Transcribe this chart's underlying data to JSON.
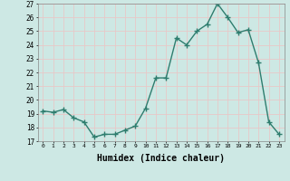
{
  "x": [
    0,
    1,
    2,
    3,
    4,
    5,
    6,
    7,
    8,
    9,
    10,
    11,
    12,
    13,
    14,
    15,
    16,
    17,
    18,
    19,
    20,
    21,
    22,
    23
  ],
  "y": [
    19.2,
    19.1,
    19.3,
    18.7,
    18.4,
    17.3,
    17.5,
    17.5,
    17.8,
    18.1,
    19.4,
    21.6,
    21.6,
    24.5,
    24.0,
    25.0,
    25.5,
    27.0,
    26.0,
    24.9,
    25.1,
    22.7,
    18.4,
    17.5
  ],
  "line_color": "#2e7d6e",
  "marker": "+",
  "marker_size": 4,
  "linewidth": 1.0,
  "xlabel": "Humidex (Indice chaleur)",
  "xlabel_fontsize": 7,
  "ylim": [
    17,
    27
  ],
  "xlim": [
    -0.5,
    23.5
  ],
  "yticks": [
    17,
    18,
    19,
    20,
    21,
    22,
    23,
    24,
    25,
    26,
    27
  ],
  "xticks": [
    0,
    1,
    2,
    3,
    4,
    5,
    6,
    7,
    8,
    9,
    10,
    11,
    12,
    13,
    14,
    15,
    16,
    17,
    18,
    19,
    20,
    21,
    22,
    23
  ],
  "bg_color": "#cde8e4",
  "grid_color": "#e8c8c8",
  "tick_color": "#000000"
}
